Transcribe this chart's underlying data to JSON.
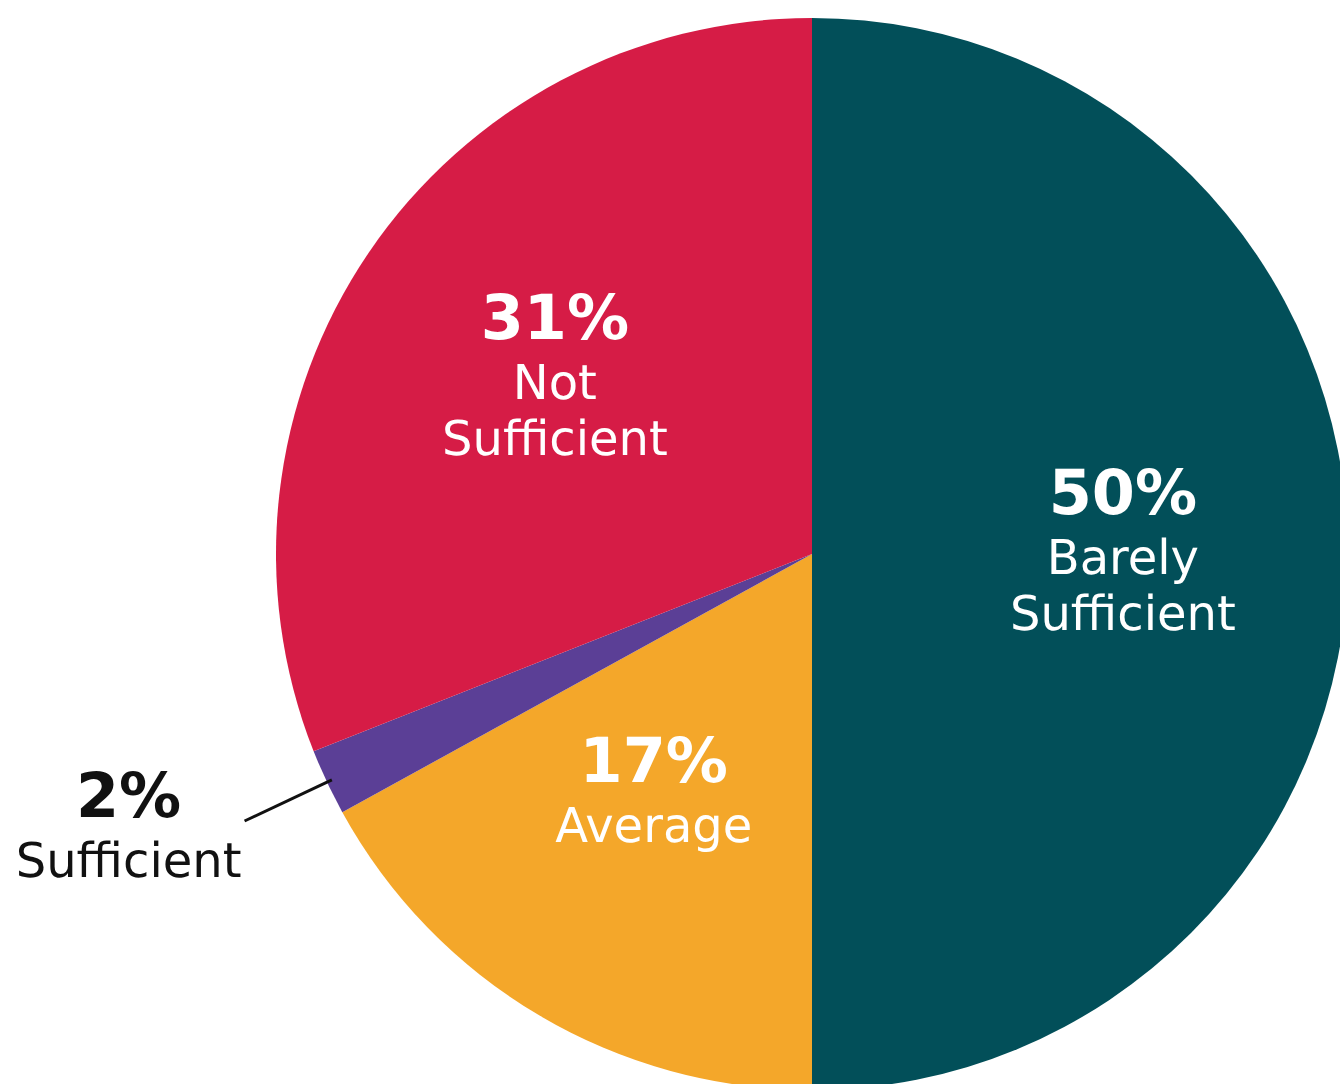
{
  "chart_data": {
    "type": "pie",
    "categories": [
      "Barely Sufficient",
      "Average",
      "Sufficient",
      "Not Sufficient"
    ],
    "values": [
      50,
      17,
      2,
      31
    ],
    "colors": [
      "#024f59",
      "#f4a72a",
      "#5b3f96",
      "#d61c46"
    ],
    "value_labels": [
      "50%",
      "17%",
      "2%",
      "31%"
    ]
  }
}
